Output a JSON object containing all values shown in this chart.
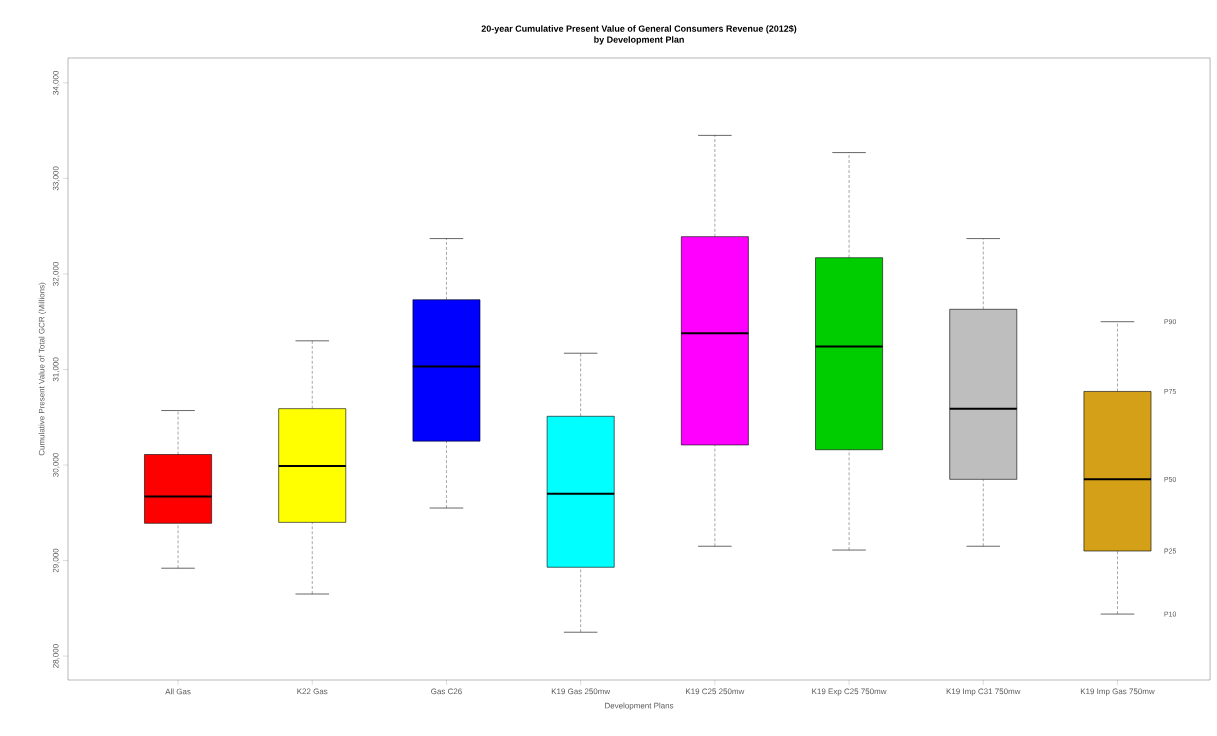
{
  "chart_data": {
    "type": "box",
    "title": "20-year Cumulative Present Value of General Consumers Revenue (2012$)",
    "subtitle": "by Development Plan",
    "xlabel": "Development Plans",
    "ylabel": "Cumulative Present Value of Total GCR (Millions)",
    "categories": [
      "All Gas",
      "K22 Gas",
      "Gas C26",
      "K19 Gas 250mw",
      "K19 C25 250mw",
      "K19 Exp C25 750mw",
      "K19 Imp C31 750mw",
      "K19 Imp Gas 750mw"
    ],
    "colors": [
      "#ff0000",
      "#ffff00",
      "#0000ff",
      "#00ffff",
      "#ff00ff",
      "#00cd00",
      "#bebebe",
      "#d4a017"
    ],
    "boxes": [
      {
        "low": 28920,
        "q1": 29390,
        "median": 29670,
        "q3": 30110,
        "high": 30570
      },
      {
        "low": 28650,
        "q1": 29400,
        "median": 29990,
        "q3": 30590,
        "high": 31300
      },
      {
        "low": 29550,
        "q1": 30250,
        "median": 31030,
        "q3": 31730,
        "high": 32370
      },
      {
        "low": 28250,
        "q1": 28930,
        "median": 29700,
        "q3": 30510,
        "high": 31170
      },
      {
        "low": 29150,
        "q1": 30210,
        "median": 31380,
        "q3": 32390,
        "high": 33450
      },
      {
        "low": 29110,
        "q1": 30160,
        "median": 31240,
        "q3": 32170,
        "high": 33270
      },
      {
        "low": 29150,
        "q1": 29850,
        "median": 30590,
        "q3": 31630,
        "high": 32370
      },
      {
        "low": 28440,
        "q1": 29100,
        "median": 29850,
        "q3": 30770,
        "high": 31500
      }
    ],
    "ylim": [
      27750,
      34260
    ],
    "yticks": [
      {
        "value": 28000,
        "label": "28,000"
      },
      {
        "value": 29000,
        "label": "29,000"
      },
      {
        "value": 30000,
        "label": "30,000"
      },
      {
        "value": 31000,
        "label": "31,000"
      },
      {
        "value": 32000,
        "label": "32,000"
      },
      {
        "value": 33000,
        "label": "33,000"
      },
      {
        "value": 34000,
        "label": "34,000"
      }
    ],
    "annotations": [
      "P90",
      "P75",
      "P50",
      "P25",
      "P10"
    ]
  }
}
